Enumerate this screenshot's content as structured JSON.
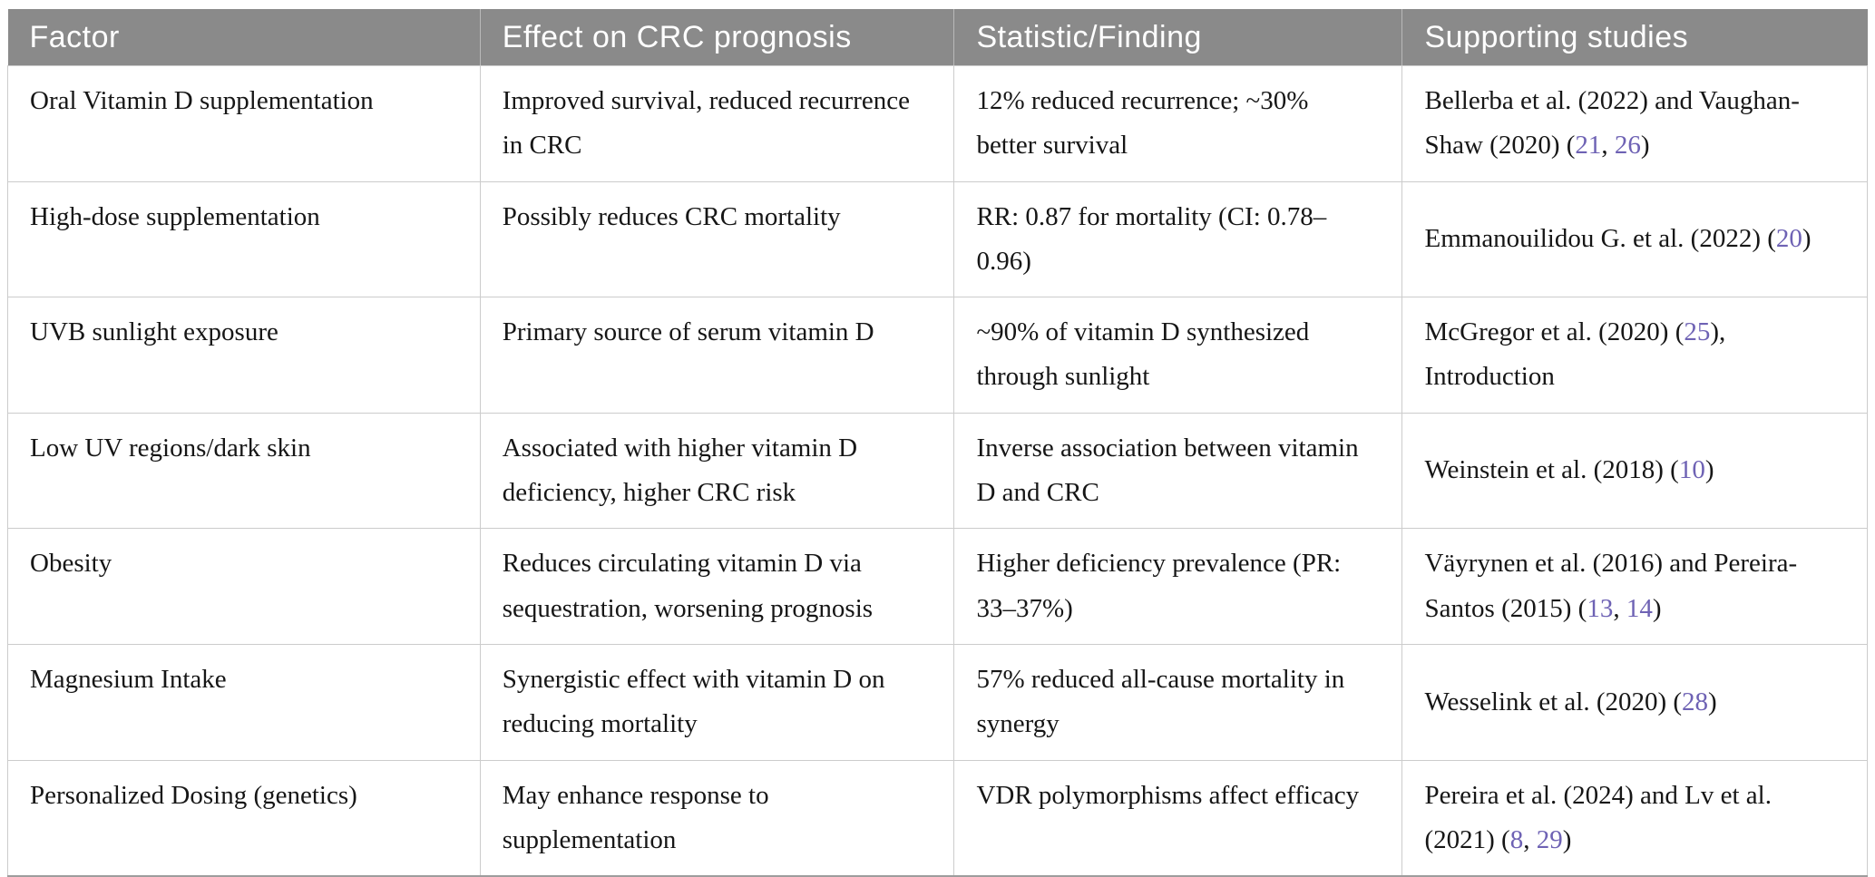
{
  "colors": {
    "header_bg": "#8a8a8a",
    "header_text": "#ffffff",
    "body_text": "#161616",
    "grid_line": "#cccccc",
    "bottom_rule": "#9d9d9d",
    "reference_link": "#6e62b4"
  },
  "table": {
    "columns": [
      {
        "label": "Factor"
      },
      {
        "label": "Effect on CRC prognosis"
      },
      {
        "label": "Statistic/Finding"
      },
      {
        "label": "Supporting studies"
      }
    ],
    "rows": [
      {
        "factor": "Oral Vitamin D supplementation",
        "effect": "Improved survival, reduced recurrence in CRC",
        "statistic": "12% reduced recurrence; ~30% better survival",
        "studies": [
          {
            "text": "Bellerba et al. (2022) and Vaughan-Shaw (2020) ("
          },
          {
            "link": "21"
          },
          {
            "text": ", "
          },
          {
            "link": "26"
          },
          {
            "text": ")"
          }
        ]
      },
      {
        "factor": "High-dose supplementation",
        "effect": "Possibly reduces CRC mortality",
        "statistic": "RR: 0.87 for mortality (CI: 0.78–0.96)",
        "studies": [
          {
            "text": "Emmanouilidou G. et al. (2022) ("
          },
          {
            "link": "20"
          },
          {
            "text": ")"
          }
        ]
      },
      {
        "factor": "UVB sunlight exposure",
        "effect": "Primary source of serum vitamin D",
        "statistic": "~90% of vitamin D synthesized through sunlight",
        "studies": [
          {
            "text": "McGregor et al. (2020) ("
          },
          {
            "link": "25"
          },
          {
            "text": "), Introduction"
          }
        ]
      },
      {
        "factor": "Low UV regions/dark skin",
        "effect": "Associated with higher vitamin D deficiency, higher CRC risk",
        "statistic": "Inverse association between vitamin D and CRC",
        "studies": [
          {
            "text": "Weinstein et al. (2018) ("
          },
          {
            "link": "10"
          },
          {
            "text": ")"
          }
        ]
      },
      {
        "factor": "Obesity",
        "effect": "Reduces circulating vitamin D via sequestration, worsening prognosis",
        "statistic": "Higher deficiency prevalence (PR: 33–37%)",
        "studies": [
          {
            "text": "Väyrynen et al. (2016) and Pereira-Santos (2015) ("
          },
          {
            "link": "13"
          },
          {
            "text": ", "
          },
          {
            "link": "14"
          },
          {
            "text": ")"
          }
        ]
      },
      {
        "factor": "Magnesium Intake",
        "effect": "Synergistic effect with vitamin D on reducing mortality",
        "statistic": "57% reduced all-cause mortality in synergy",
        "studies": [
          {
            "text": "Wesselink et al. (2020) ("
          },
          {
            "link": "28"
          },
          {
            "text": ")"
          }
        ]
      },
      {
        "factor": "Personalized Dosing (genetics)",
        "effect": "May enhance response to supplementation",
        "statistic": "VDR polymorphisms affect efficacy",
        "studies": [
          {
            "text": "Pereira et al. (2024) and Lv et al. (2021) ("
          },
          {
            "link": "8"
          },
          {
            "text": ", "
          },
          {
            "link": "29"
          },
          {
            "text": ")"
          }
        ]
      }
    ]
  }
}
